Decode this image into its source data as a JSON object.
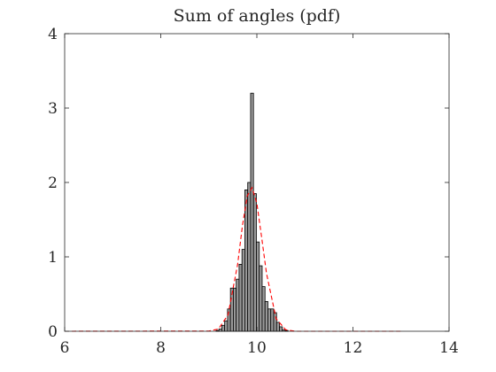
{
  "chart_data": {
    "type": "bar",
    "title": "Sum of angles (pdf)",
    "xlabel": "",
    "ylabel": "",
    "xlim": [
      6,
      14
    ],
    "ylim": [
      0,
      4
    ],
    "xticks": [
      6,
      8,
      10,
      12,
      14
    ],
    "yticks": [
      0,
      1,
      2,
      3,
      4
    ],
    "xtick_labels": [
      "6",
      "8",
      "10",
      "12",
      "14"
    ],
    "ytick_labels": [
      "0",
      "1",
      "2",
      "3",
      "4"
    ],
    "grid": false,
    "legend": "none",
    "bar_color": "#999999",
    "bar_edge_color": "#000000",
    "fit_color": "#ff0000",
    "bin_width": 0.06,
    "series": [
      {
        "type": "bar",
        "x": [
          9.18,
          9.24,
          9.3,
          9.36,
          9.42,
          9.48,
          9.54,
          9.6,
          9.66,
          9.72,
          9.78,
          9.84,
          9.9,
          9.96,
          10.02,
          10.08,
          10.14,
          10.2,
          10.26,
          10.32,
          10.38,
          10.44,
          10.5,
          10.56,
          10.62
        ],
        "values": [
          0.01,
          0.03,
          0.08,
          0.14,
          0.3,
          0.58,
          0.58,
          0.7,
          0.9,
          1.1,
          1.9,
          2.0,
          3.2,
          1.85,
          1.2,
          0.88,
          0.6,
          0.4,
          0.3,
          0.3,
          0.25,
          0.12,
          0.06,
          0.02,
          0.01
        ]
      },
      {
        "type": "line",
        "style": "dashed",
        "x": [
          6.0,
          9.0,
          9.2,
          9.4,
          9.6,
          9.7,
          9.8,
          9.9,
          10.0,
          10.1,
          10.2,
          10.4,
          10.6,
          10.8,
          13.0
        ],
        "values": [
          0.0,
          0.003,
          0.03,
          0.22,
          0.9,
          1.42,
          1.82,
          1.93,
          1.72,
          1.26,
          0.78,
          0.17,
          0.02,
          0.0,
          0.0
        ]
      }
    ]
  }
}
